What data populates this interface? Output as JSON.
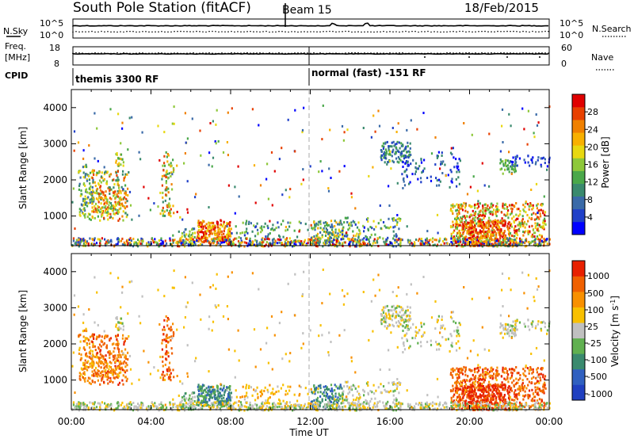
{
  "header": {
    "station": "South Pole Station (fitACF)",
    "beam": "Beam 15",
    "date": "18/Feb/2015"
  },
  "top_panels": {
    "nsky_label": "N.Sky",
    "nsky_ticks": [
      "10^5",
      "10^0"
    ],
    "nsearch_label": "N.Search",
    "nsearch_ticks": [
      "10^5",
      "10^0"
    ],
    "freq_label_1": "Freq.",
    "freq_label_2": "[MHz]",
    "freq_ticks": [
      "18",
      "8"
    ],
    "nave_label": "Nave",
    "nave_ticks": [
      "60",
      "0"
    ],
    "cpid_label": "CPID",
    "cpid_segments": [
      "themis 3300 RF",
      "normal (fast) -151 RF"
    ]
  },
  "chart_data": [
    {
      "type": "heatmap",
      "name": "power",
      "xlabel": "",
      "ylabel": "Slant Range [km]",
      "x_ticks": [
        "00:00",
        "04:00",
        "08:00",
        "12:00",
        "16:00",
        "20:00",
        "00:00"
      ],
      "x_range_hours": [
        0,
        24
      ],
      "y_ticks": [
        1000,
        2000,
        3000,
        4000
      ],
      "y_range_km": [
        180,
        4500
      ],
      "colorbar_label": "Power [dB]",
      "colorbar_ticks": [
        28,
        24,
        20,
        16,
        12,
        8,
        4
      ],
      "colorbar_range": [
        0,
        32
      ],
      "colorbar_colors": [
        "#0000ff",
        "#2040c8",
        "#3a6aa8",
        "#3a8a6e",
        "#4aa84a",
        "#8ec83a",
        "#e8d810",
        "#f8b000",
        "#f08000",
        "#e84000",
        "#e00000"
      ]
    },
    {
      "type": "heatmap",
      "name": "velocity",
      "xlabel": "Time UT",
      "ylabel": "Slant Range [km]",
      "x_ticks": [
        "00:00",
        "04:00",
        "08:00",
        "12:00",
        "16:00",
        "20:00",
        "00:00"
      ],
      "x_range_hours": [
        0,
        24
      ],
      "y_ticks": [
        1000,
        2000,
        3000,
        4000
      ],
      "y_range_km": [
        180,
        4500
      ],
      "colorbar_label": "Velocity [m s^-1]",
      "colorbar_ticks": [
        "1000",
        "500",
        "100",
        "25",
        "-25",
        "-100",
        "-500",
        "-1000"
      ],
      "colorbar_colors": [
        "#2040c0",
        "#3060c0",
        "#3a8a6e",
        "#60b050",
        "#c0c0c0",
        "#f8c000",
        "#f89000",
        "#f06000",
        "#e82000"
      ]
    }
  ]
}
